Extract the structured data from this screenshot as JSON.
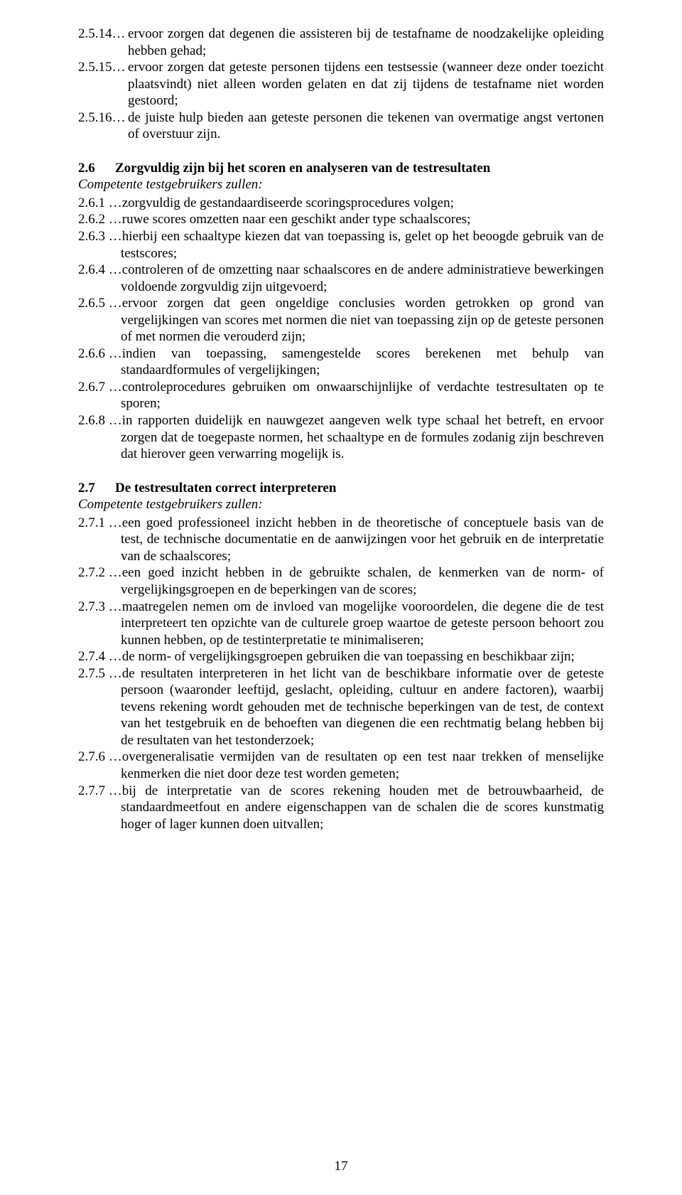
{
  "section_25_items": [
    {
      "num": "2.5.14…",
      "text": "ervoor zorgen dat degenen die assisteren bij de testafname de noodzakelijke opleiding hebben gehad;"
    },
    {
      "num": "2.5.15…",
      "text": "ervoor zorgen dat geteste personen tijdens een testsessie (wanneer deze onder toezicht plaatsvindt) niet alleen worden gelaten en dat zij tijdens de testafname niet worden gestoord;"
    },
    {
      "num": "2.5.16…",
      "text": "de juiste hulp bieden aan geteste personen die tekenen van overmatige angst vertonen of overstuur zijn."
    }
  ],
  "section_26": {
    "num": "2.6",
    "title": "Zorgvuldig zijn bij het scoren en analyseren van de testresultaten",
    "subtitle": "Competente testgebruikers zullen:",
    "items": [
      {
        "num": "2.6.1 …",
        "text": "zorgvuldig de gestandaardiseerde scoringsprocedures volgen;"
      },
      {
        "num": "2.6.2 …",
        "text": "ruwe scores omzetten naar een geschikt ander type schaalscores;"
      },
      {
        "num": "2.6.3 …",
        "text": "hierbij een schaaltype kiezen dat van toepassing is, gelet op het beoogde gebruik van de testscores;"
      },
      {
        "num": "2.6.4 …",
        "text": "controleren of de omzetting naar schaalscores en de andere administratieve bewerkingen voldoende zorgvuldig zijn uitgevoerd;"
      },
      {
        "num": "2.6.5 …",
        "text": "ervoor zorgen dat geen ongeldige conclusies worden getrokken op grond van vergelijkingen van scores met normen die niet van toepassing zijn op de geteste personen of met normen die verouderd zijn;"
      },
      {
        "num": "2.6.6 …",
        "text": "indien van toepassing, samengestelde scores berekenen met behulp van standaardformules of vergelijkingen;"
      },
      {
        "num": "2.6.7 …",
        "text": "controleprocedures gebruiken om onwaarschijnlijke of verdachte testresultaten op te sporen;"
      },
      {
        "num": "2.6.8 …",
        "text": "in rapporten duidelijk en nauwgezet aangeven welk type schaal het betreft, en ervoor zorgen dat de toegepaste normen, het schaaltype en de formules zodanig zijn beschreven dat hierover geen verwarring mogelijk is."
      }
    ]
  },
  "section_27": {
    "num": "2.7",
    "title": "De testresultaten correct interpreteren",
    "subtitle": "Competente testgebruikers zullen:",
    "items": [
      {
        "num": "2.7.1 …",
        "text": "een goed professioneel inzicht hebben in de theoretische of conceptuele basis van de test, de technische documentatie en de aanwijzingen voor het gebruik en de interpretatie van de schaalscores;"
      },
      {
        "num": "2.7.2 …",
        "text": "een goed inzicht hebben in de gebruikte schalen, de kenmerken van de norm- of vergelijkingsgroepen en de beperkingen van de scores;"
      },
      {
        "num": "2.7.3 …",
        "text": "maatregelen nemen om de invloed van mogelijke vooroordelen, die degene die de test interpreteert ten opzichte van de culturele groep waartoe de geteste persoon behoort zou kunnen hebben, op de testinterpretatie te minimaliseren;"
      },
      {
        "num": "2.7.4 …",
        "text": "de norm- of vergelijkingsgroepen gebruiken die van toepassing en beschikbaar zijn;"
      },
      {
        "num": "2.7.5 …",
        "text": "de resultaten interpreteren in het licht van de beschikbare informatie over de geteste persoon (waaronder leeftijd, geslacht, opleiding, cultuur en andere factoren), waarbij tevens rekening wordt gehouden met de technische beperkingen van de test, de context van het testgebruik en de behoeften van diegenen die een rechtmatig belang hebben bij de resultaten van het testonderzoek;"
      },
      {
        "num": "2.7.6 …",
        "text": "overgeneralisatie vermijden van de resultaten op een test naar trekken of menselijke kenmerken die niet door deze test worden gemeten;"
      },
      {
        "num": "2.7.7 …",
        "text": "bij de interpretatie van de scores rekening houden met de betrouwbaarheid, de standaardmeetfout en andere eigenschappen van de schalen die de scores kunstmatig hoger of lager kunnen doen uitvallen;"
      }
    ]
  },
  "page_number": "17"
}
